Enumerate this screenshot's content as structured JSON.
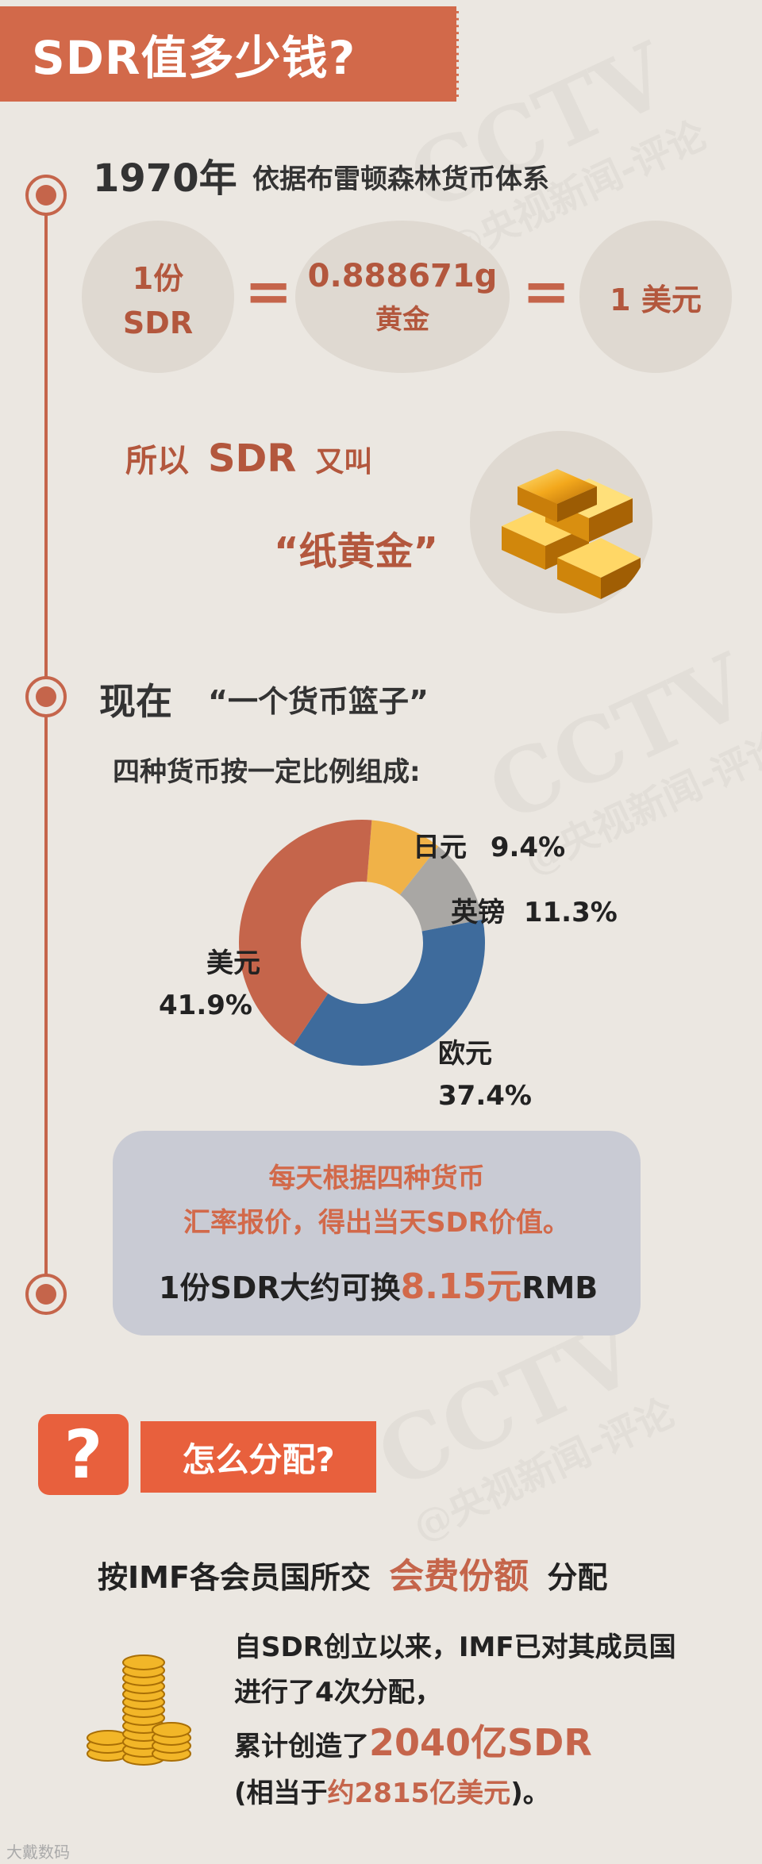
{
  "header": {
    "title": "SDR值多少钱?"
  },
  "section_1970": {
    "year": "1970年",
    "subtitle": "依据布雷顿森林货币体系",
    "equation": {
      "left_line1": "1份",
      "left_line2": "SDR",
      "equals": "=",
      "middle_line1": "0.888671g",
      "middle_line2": "黄金",
      "right": "1 美元"
    },
    "nickname": {
      "part1": "所以",
      "part2": "SDR",
      "part3": "又叫",
      "name": "“纸黄金”"
    }
  },
  "section_now": {
    "title": "现在",
    "subtitle": "“一个货币篮子”",
    "description": "四种货币按一定比例组成:"
  },
  "chart_data": {
    "type": "pie",
    "donut": true,
    "slices": [
      {
        "label": "日元",
        "value": 9.4,
        "display": "9.4%",
        "color": "#f0b248"
      },
      {
        "label": "英镑",
        "value": 11.3,
        "display": "11.3%",
        "color": "#a9a7a4"
      },
      {
        "label": "欧元",
        "value": 37.4,
        "display": "37.4%",
        "color": "#3e6b9c"
      },
      {
        "label": "美元",
        "value": 41.9,
        "display": "41.9%",
        "color": "#c5654b"
      }
    ]
  },
  "info_box": {
    "line1": "每天根据四种货币",
    "line2": "汇率报价，得出当天SDR价值。",
    "line3_prefix": "1份SDR大约可换",
    "line3_value": "8.15元",
    "line3_suffix": "RMB"
  },
  "allocation": {
    "question_mark": "?",
    "title": "怎么分配?",
    "rule_prefix": "按IMF各会员国所交",
    "rule_highlight": "会费份额",
    "rule_suffix": "分配",
    "para_line1": "自SDR创立以来，IMF已对其成员国",
    "para_line2": "进行了4次分配，",
    "para_line3_prefix": "累计创造了",
    "para_line3_value": "2040亿SDR",
    "para_line4_prefix": "(相当于",
    "para_line4_value": "约2815亿美元",
    "para_line4_suffix": ")。"
  },
  "watermark": {
    "brand": "CCTV",
    "channel": "@央视新闻-评论"
  },
  "footer": {
    "text": "大戴数码"
  },
  "colors": {
    "accent": "#c5654b",
    "banner": "#d2694a",
    "background": "#ebe7e1"
  }
}
